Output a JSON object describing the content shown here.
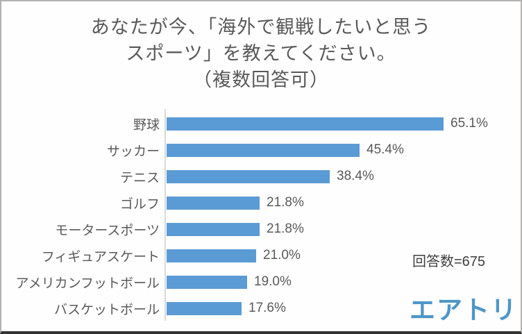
{
  "title": {
    "line1": "あなたが今、「海外で観戦したいと思う",
    "line2": "スポーツ」を教えてください。",
    "line3": "（複数回答可）",
    "color": "#595959"
  },
  "chart_data": {
    "type": "bar",
    "orientation": "horizontal",
    "title": "あなたが今、「海外で観戦したいと思うスポーツ」を教えてください。（複数回答可）",
    "categories": [
      "野球",
      "サッカー",
      "テニス",
      "ゴルフ",
      "モータースポーツ",
      "フィギュアスケート",
      "アメリカンフットボール",
      "バスケットボール"
    ],
    "values": [
      65.1,
      45.4,
      38.4,
      21.8,
      21.8,
      21.0,
      19.0,
      17.6
    ],
    "value_labels": [
      "65.1%",
      "45.4%",
      "38.4%",
      "21.8%",
      "21.8%",
      "21.0%",
      "19.0%",
      "17.6%"
    ],
    "xlabel": "",
    "ylabel": "",
    "xlim": [
      0,
      70
    ],
    "grid": false,
    "legend": false,
    "bar_color": "#5b9bd5",
    "axis_line_color": "#d9d9d9",
    "label_color": "#595959"
  },
  "annotation": {
    "respondents_text": "回答数=675",
    "color": "#3f3f3f"
  },
  "logo": {
    "text": "エアトリ",
    "color": "#4e96c8"
  }
}
